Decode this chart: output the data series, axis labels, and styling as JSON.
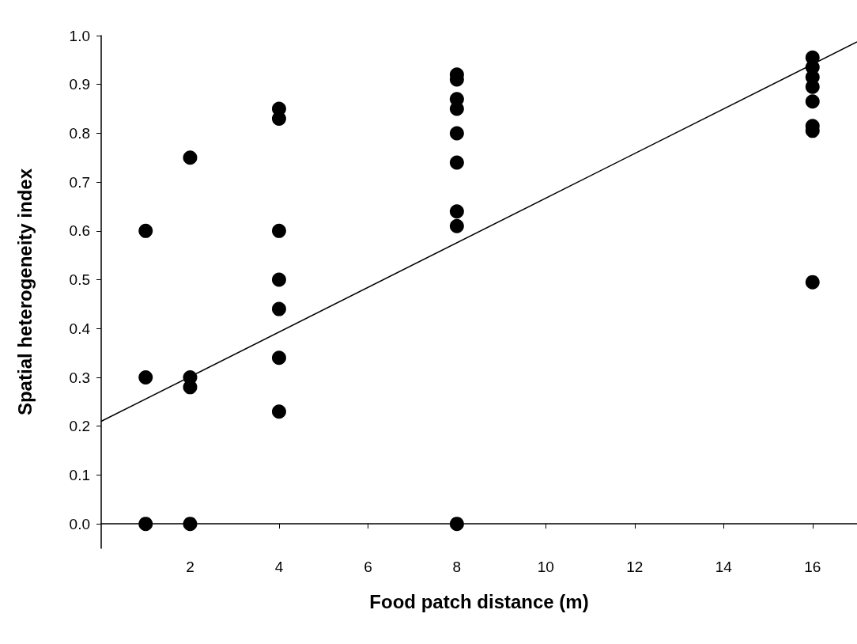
{
  "chart_data": {
    "type": "scatter",
    "xlabel": "Food patch distance (m)",
    "ylabel": "Spatial heterogeneity index",
    "series": [
      {
        "color": "#000000",
        "marker": "circle",
        "x": [
          1,
          1,
          1,
          2,
          2,
          2,
          2,
          4,
          4,
          4,
          4,
          4,
          4,
          4,
          8,
          8,
          8,
          8,
          8,
          8,
          8,
          8,
          8,
          16,
          16,
          16,
          16,
          16,
          16,
          16,
          16
        ],
        "values": [
          0.6,
          0.3,
          0.0,
          0.75,
          0.3,
          0.28,
          0.0,
          0.85,
          0.83,
          0.6,
          0.5,
          0.44,
          0.34,
          0.23,
          0.92,
          0.91,
          0.87,
          0.85,
          0.8,
          0.74,
          0.64,
          0.61,
          0.0,
          0.955,
          0.935,
          0.915,
          0.895,
          0.865,
          0.815,
          0.805,
          0.495
        ]
      },
      {
        "type": "line",
        "color": "#000000",
        "marker": "none",
        "x": [
          0,
          17
        ],
        "values": [
          0.21,
          0.987
        ]
      }
    ],
    "xlim": [
      0,
      17
    ],
    "xticks": [
      2,
      4,
      6,
      8,
      10,
      12,
      14,
      16
    ],
    "ylim": [
      -0.05,
      1.0
    ],
    "yticks": [
      {
        "value": 0,
        "label": "0.0"
      },
      {
        "value": 0.1,
        "label": "0.1"
      },
      {
        "value": 0.2,
        "label": "0.2"
      },
      {
        "value": 0.3,
        "label": "0.3"
      },
      {
        "value": 0.4,
        "label": "0.4"
      },
      {
        "value": 0.5,
        "label": "0.5"
      },
      {
        "value": 0.6,
        "label": "0.6"
      },
      {
        "value": 0.7,
        "label": "0.7"
      },
      {
        "value": 0.8,
        "label": "0.8"
      },
      {
        "value": 0.9,
        "label": "0.9"
      },
      {
        "value": 1,
        "label": "1.0"
      }
    ],
    "grid": false
  }
}
